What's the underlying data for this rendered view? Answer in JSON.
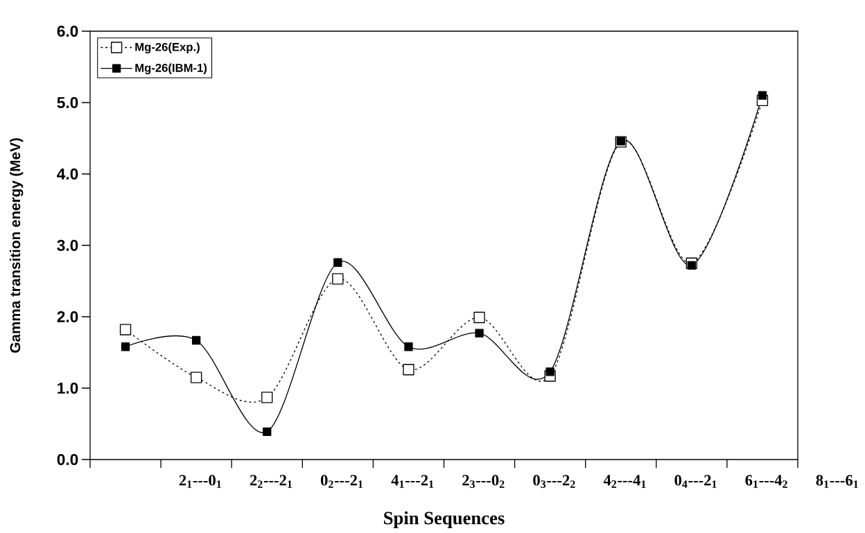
{
  "chart_data": {
    "type": "line",
    "xlabel": "Spin Sequences",
    "ylabel": "Gamma transition energy (MeV)",
    "categories": [
      null,
      "2$_{1}$---0$_{1}$",
      "2$_{2}$---2$_{1}$",
      "0$_{2}$---2$_{1}$",
      "4$_{1}$---2$_{1}$",
      "2$_{3}$---0$_{2}$",
      "0$_{3}$---2$_{2}$",
      "4$_{2}$---4$_{1}$",
      "0$_{4}$---2$_{1}$",
      "6$_{1}$---4$_{2}$",
      "8$_{1}$---6$_{1}$"
    ],
    "series": [
      {
        "name": "Mg-26(Exp.)",
        "color": "#000000",
        "line_style": "dotted",
        "values": [
          1.82,
          1.15,
          0.87,
          2.53,
          1.26,
          1.99,
          1.17,
          4.45,
          2.75,
          5.03,
          null
        ]
      },
      {
        "name": "Mg-26(IBM-1)",
        "color": "#000000",
        "line_style": "solid",
        "values": [
          1.58,
          1.67,
          0.39,
          2.76,
          1.58,
          1.77,
          1.23,
          4.46,
          2.72,
          5.1,
          null
        ]
      }
    ],
    "ylim": [
      0,
      6
    ],
    "yticks": [
      {
        "value": 0,
        "label": "0.0"
      },
      {
        "value": 1,
        "label": "1.0"
      },
      {
        "value": 2,
        "label": "2.0"
      },
      {
        "value": 3,
        "label": "3.0"
      },
      {
        "value": 4,
        "label": "4.0"
      },
      {
        "value": 5,
        "label": "5.0"
      },
      {
        "value": 6,
        "label": "6.0"
      }
    ],
    "marker": "square",
    "legend": "top left",
    "grid": false
  }
}
